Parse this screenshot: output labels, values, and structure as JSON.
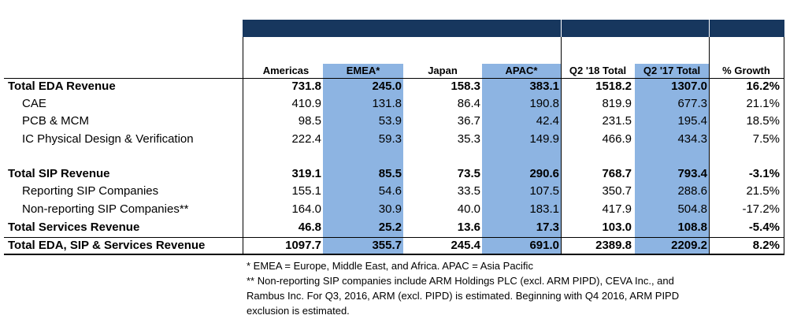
{
  "table": {
    "columns": [
      "Americas",
      "EMEA*",
      "Japan",
      "APAC*",
      "Q2 '18 Total",
      "Q2 '17 Total",
      "% Growth"
    ],
    "rows": [
      {
        "label": "Total EDA Revenue",
        "values": [
          "731.8",
          "245.0",
          "158.3",
          "383.1",
          "1518.2",
          "1307.0",
          "16.2%"
        ]
      },
      {
        "label": "CAE",
        "values": [
          "410.9",
          "131.8",
          "86.4",
          "190.8",
          "819.9",
          "677.3",
          "21.1%"
        ]
      },
      {
        "label": "PCB & MCM",
        "values": [
          "98.5",
          "53.9",
          "36.7",
          "42.4",
          "231.5",
          "195.4",
          "18.5%"
        ]
      },
      {
        "label": "IC Physical Design & Verification",
        "values": [
          "222.4",
          "59.3",
          "35.3",
          "149.9",
          "466.9",
          "434.3",
          "7.5%"
        ]
      },
      {
        "label": "Total SIP Revenue",
        "values": [
          "319.1",
          "85.5",
          "73.5",
          "290.6",
          "768.7",
          "793.4",
          "-3.1%"
        ]
      },
      {
        "label": "Reporting SIP Companies",
        "values": [
          "155.1",
          "54.6",
          "33.5",
          "107.5",
          "350.7",
          "288.6",
          "21.5%"
        ]
      },
      {
        "label": "Non-reporting SIP Companies**",
        "values": [
          "164.0",
          "30.9",
          "40.0",
          "183.1",
          "417.9",
          "504.8",
          "-17.2%"
        ]
      },
      {
        "label": "Total Services Revenue",
        "values": [
          "46.8",
          "25.2",
          "13.6",
          "17.3",
          "103.0",
          "108.8",
          "-5.4%"
        ]
      },
      {
        "label": "Total EDA, SIP & Services Revenue",
        "values": [
          "1097.7",
          "355.7",
          "245.4",
          "691.0",
          "2389.8",
          "2209.2",
          "8.2%"
        ]
      }
    ]
  },
  "footnotes": {
    "line1": "* EMEA = Europe, Middle East, and Africa. APAC = Asia Pacific",
    "line2": "** Non-reporting SIP companies include ARM Holdings PLC (excl. ARM PIPD), CEVA Inc., and",
    "line3": "Rambus Inc. For Q3, 2016, ARM (excl. PIPD) is estimated. Beginning with Q4 2016, ARM PIPD",
    "line4": "exclusion is estimated."
  },
  "colors": {
    "header_band": "#17375e",
    "highlight_column": "#8db4e2"
  }
}
